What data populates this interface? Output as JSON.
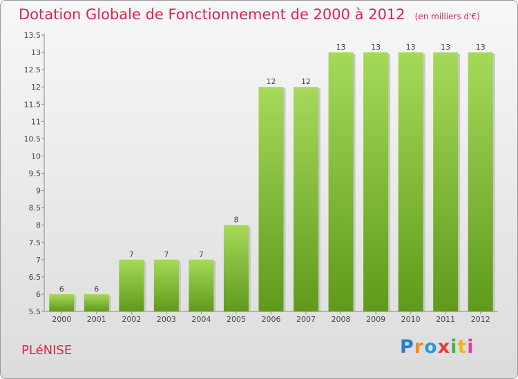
{
  "title": "Dotation Globale de Fonctionnement de 2000 à 2012",
  "unit": "(en milliers d'€)",
  "commune": "PLéNISE",
  "logo": {
    "letters": [
      "P",
      "r",
      "o",
      "x",
      "i",
      "t",
      "i"
    ],
    "colors": [
      "#2a7bd4",
      "#f28c1b",
      "#2a9bd4",
      "#e33c3c",
      "#3ab54a",
      "#f2b51b",
      "#e33c9c"
    ]
  },
  "colors": {
    "bar_light": "#a6d95a",
    "bar_dark": "#5f9a1a",
    "title": "#d9264a"
  },
  "chart_data": {
    "type": "bar",
    "title": "Dotation Globale de Fonctionnement de 2000 à 2012",
    "categories": [
      "2000",
      "2001",
      "2002",
      "2003",
      "2004",
      "2005",
      "2006",
      "2007",
      "2008",
      "2009",
      "2010",
      "2011",
      "2012"
    ],
    "values": [
      6,
      6,
      7,
      7,
      7,
      8,
      12,
      12,
      13,
      13,
      13,
      13,
      13
    ],
    "data_labels": [
      "6",
      "6",
      "7",
      "7",
      "7",
      "8",
      "12",
      "12",
      "13",
      "13",
      "13",
      "13",
      "13"
    ],
    "ylim": [
      5.5,
      13.5
    ],
    "yticks": [
      "5.5",
      "6",
      "6.5",
      "7",
      "7.5",
      "8",
      "8.5",
      "9",
      "9.5",
      "10",
      "10.5",
      "11",
      "11.5",
      "12",
      "12.5",
      "13",
      "13.5"
    ],
    "grid": false,
    "xlabel": "",
    "ylabel": ""
  }
}
